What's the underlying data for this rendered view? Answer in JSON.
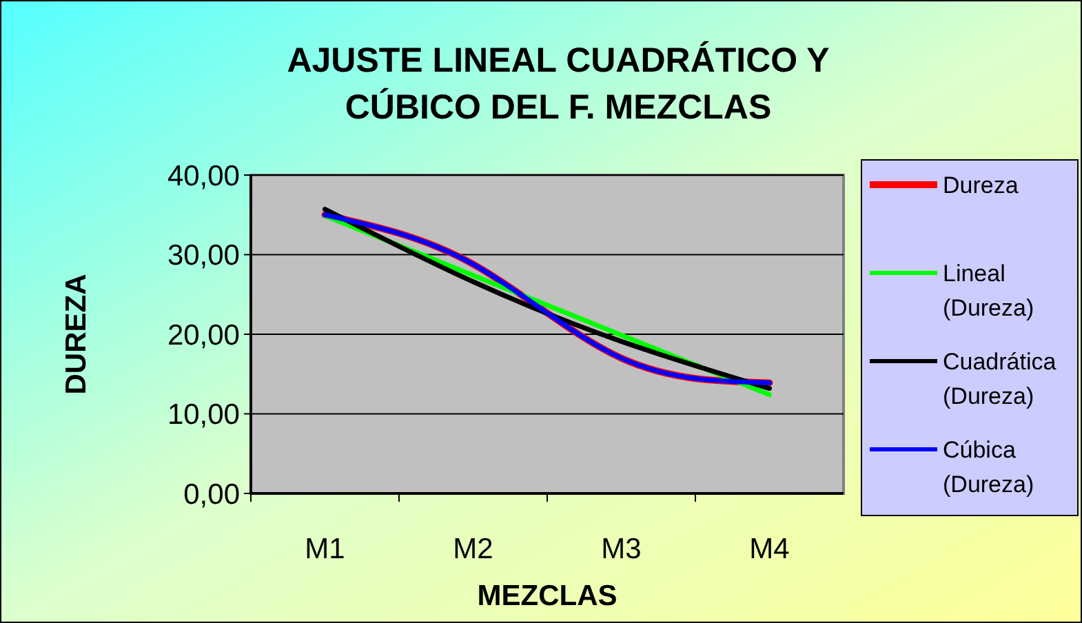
{
  "chart_data": {
    "type": "line",
    "title": "AJUSTE LINEAL CUADRÁTICO Y\nCÚBICO DEL F. MEZCLAS",
    "xlabel": "MEZCLAS",
    "ylabel": "DUREZA",
    "categories": [
      "M1",
      "M2",
      "M3",
      "M4"
    ],
    "ylim": [
      0,
      40
    ],
    "yticks": [
      {
        "value": 0,
        "label": "0,00"
      },
      {
        "value": 10,
        "label": "10,00"
      },
      {
        "value": 20,
        "label": "20,00"
      },
      {
        "value": 30,
        "label": "30,00"
      },
      {
        "value": 40,
        "label": "40,00"
      }
    ],
    "grid": "y",
    "legend": "right",
    "series": [
      {
        "name": "Dureza",
        "color": "#ff0000",
        "values": [
          35,
          28.8,
          17,
          13.9
        ]
      },
      {
        "name": "Lineal (Dureza)",
        "color": "#00ff00",
        "values": [
          34.9,
          27.4,
          19.9,
          12.4
        ]
      },
      {
        "name": "Cuadrática (Dureza)",
        "color": "#000000",
        "values": [
          35.7,
          26.6,
          19.1,
          13.2
        ]
      },
      {
        "name": "Cúbica (Dureza)",
        "color": "#0000ff",
        "values": [
          35,
          28.8,
          17,
          13.9
        ]
      }
    ]
  }
}
